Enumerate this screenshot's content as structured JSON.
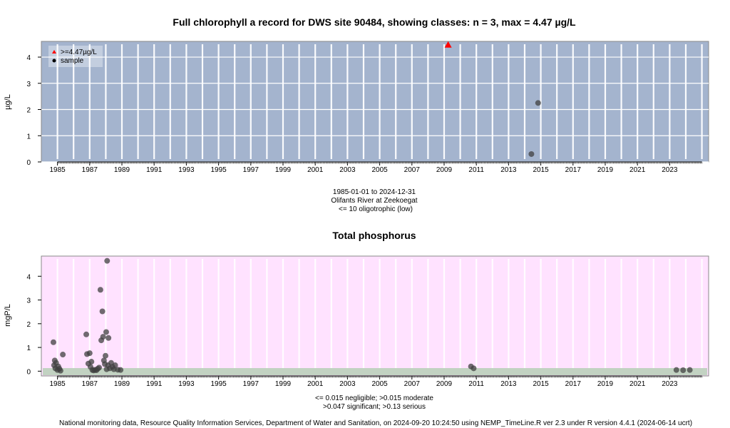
{
  "chart_data": [
    {
      "type": "scatter",
      "title": "Full chlorophyll a record for DWS site 90484, showing classes: n = 3, max = 4.47 µg/L",
      "ylabel": "µg/L",
      "xlim": [
        "1984-01-01",
        "2025-06-01"
      ],
      "ylim": [
        0,
        4.6
      ],
      "y_ticks": [
        0,
        1,
        2,
        3,
        4
      ],
      "x_tick_labels": [
        "1985",
        "1987",
        "1989",
        "1991",
        "1993",
        "1995",
        "1997",
        "1999",
        "2001",
        "2003",
        "2005",
        "2007",
        "2009",
        "2011",
        "2013",
        "2015",
        "2017",
        "2019",
        "2021",
        "2023"
      ],
      "background_color": "#a4b4ce",
      "legend": {
        "placement": "top-left",
        "entries": [
          {
            "label": ">=4.47µg/L",
            "marker": "triangle",
            "color": "#ff0000"
          },
          {
            "label": "sample",
            "marker": "circle",
            "color": "#000000"
          }
        ]
      },
      "series": [
        {
          "name": ">=4.47µg/L",
          "marker": "triangle",
          "color": "#ff0000",
          "points": [
            [
              "2009-04-01",
              4.47
            ]
          ]
        },
        {
          "name": "sample",
          "marker": "circle",
          "color": "#404040",
          "points": [
            [
              "2014-06-01",
              0.3
            ],
            [
              "2014-11-01",
              2.25
            ]
          ]
        }
      ],
      "caption": [
        "1985-01-01 to 2024-12-31",
        "Olifants River at Zeekoegat",
        "<= 10 oligotrophic (low)"
      ]
    },
    {
      "type": "scatter",
      "title": "Total phosphorus",
      "ylabel": "mgP/L",
      "xlim": [
        "1984-01-01",
        "2025-06-01"
      ],
      "ylim": [
        -0.2,
        4.85
      ],
      "y_ticks": [
        0,
        1,
        2,
        3,
        4
      ],
      "x_tick_labels": [
        "1985",
        "1987",
        "1989",
        "1991",
        "1993",
        "1995",
        "1997",
        "1999",
        "2001",
        "2003",
        "2005",
        "2007",
        "2009",
        "2011",
        "2013",
        "2015",
        "2017",
        "2019",
        "2021",
        "2023"
      ],
      "background_color": "#ffe2ff",
      "class_band_color": "#c2d2c2",
      "series": [
        {
          "name": "",
          "marker": "circle",
          "color": "#404040",
          "points": [
            [
              "1984-10-01",
              1.22
            ],
            [
              "1984-10-15",
              0.25
            ],
            [
              "1984-11-01",
              0.45
            ],
            [
              "1984-11-15",
              0.12
            ],
            [
              "1984-12-01",
              0.35
            ],
            [
              "1985-01-01",
              0.05
            ],
            [
              "1985-01-20",
              0.2
            ],
            [
              "1985-02-15",
              0.1
            ],
            [
              "1985-03-10",
              0.02
            ],
            [
              "1985-05-01",
              0.7
            ],
            [
              "1986-10-15",
              1.55
            ],
            [
              "1986-11-01",
              0.72
            ],
            [
              "1986-12-01",
              0.32
            ],
            [
              "1987-01-01",
              0.76
            ],
            [
              "1987-01-20",
              0.18
            ],
            [
              "1987-02-10",
              0.4
            ],
            [
              "1987-03-01",
              0.05
            ],
            [
              "1987-04-01",
              0.03
            ],
            [
              "1987-05-01",
              0.06
            ],
            [
              "1987-06-01",
              0.04
            ],
            [
              "1987-07-01",
              0.1
            ],
            [
              "1987-08-01",
              0.15
            ],
            [
              "1987-09-01",
              3.43
            ],
            [
              "1987-09-20",
              1.3
            ],
            [
              "1987-10-15",
              2.52
            ],
            [
              "1987-11-01",
              1.45
            ],
            [
              "1987-11-20",
              0.45
            ],
            [
              "1987-12-10",
              0.3
            ],
            [
              "1987-12-25",
              0.65
            ],
            [
              "1988-01-10",
              1.65
            ],
            [
              "1988-01-20",
              0.08
            ],
            [
              "1988-02-01",
              4.65
            ],
            [
              "1988-02-20",
              0.25
            ],
            [
              "1988-03-01",
              1.4
            ],
            [
              "1988-04-01",
              0.12
            ],
            [
              "1988-05-01",
              0.35
            ],
            [
              "1988-06-01",
              0.18
            ],
            [
              "1988-07-01",
              0.08
            ],
            [
              "1988-08-01",
              0.25
            ],
            [
              "1988-10-01",
              0.06
            ],
            [
              "1988-12-01",
              0.05
            ],
            [
              "2010-09-01",
              0.2
            ],
            [
              "2010-11-01",
              0.12
            ],
            [
              "2023-06-01",
              0.05
            ],
            [
              "2023-11-01",
              0.04
            ],
            [
              "2024-04-01",
              0.05
            ]
          ]
        }
      ],
      "caption": [
        "<= 0.015 negligible; >0.015 moderate",
        ">0.047 significant; >0.13 serious"
      ]
    }
  ],
  "footer": "National monitoring data, Resource Quality Information Services, Department of Water and Sanitation, on 2024-09-20 10:24:50 using NEMP_TimeLine.R ver 2.3 under R version 4.4.1 (2024-06-14 ucrt)"
}
